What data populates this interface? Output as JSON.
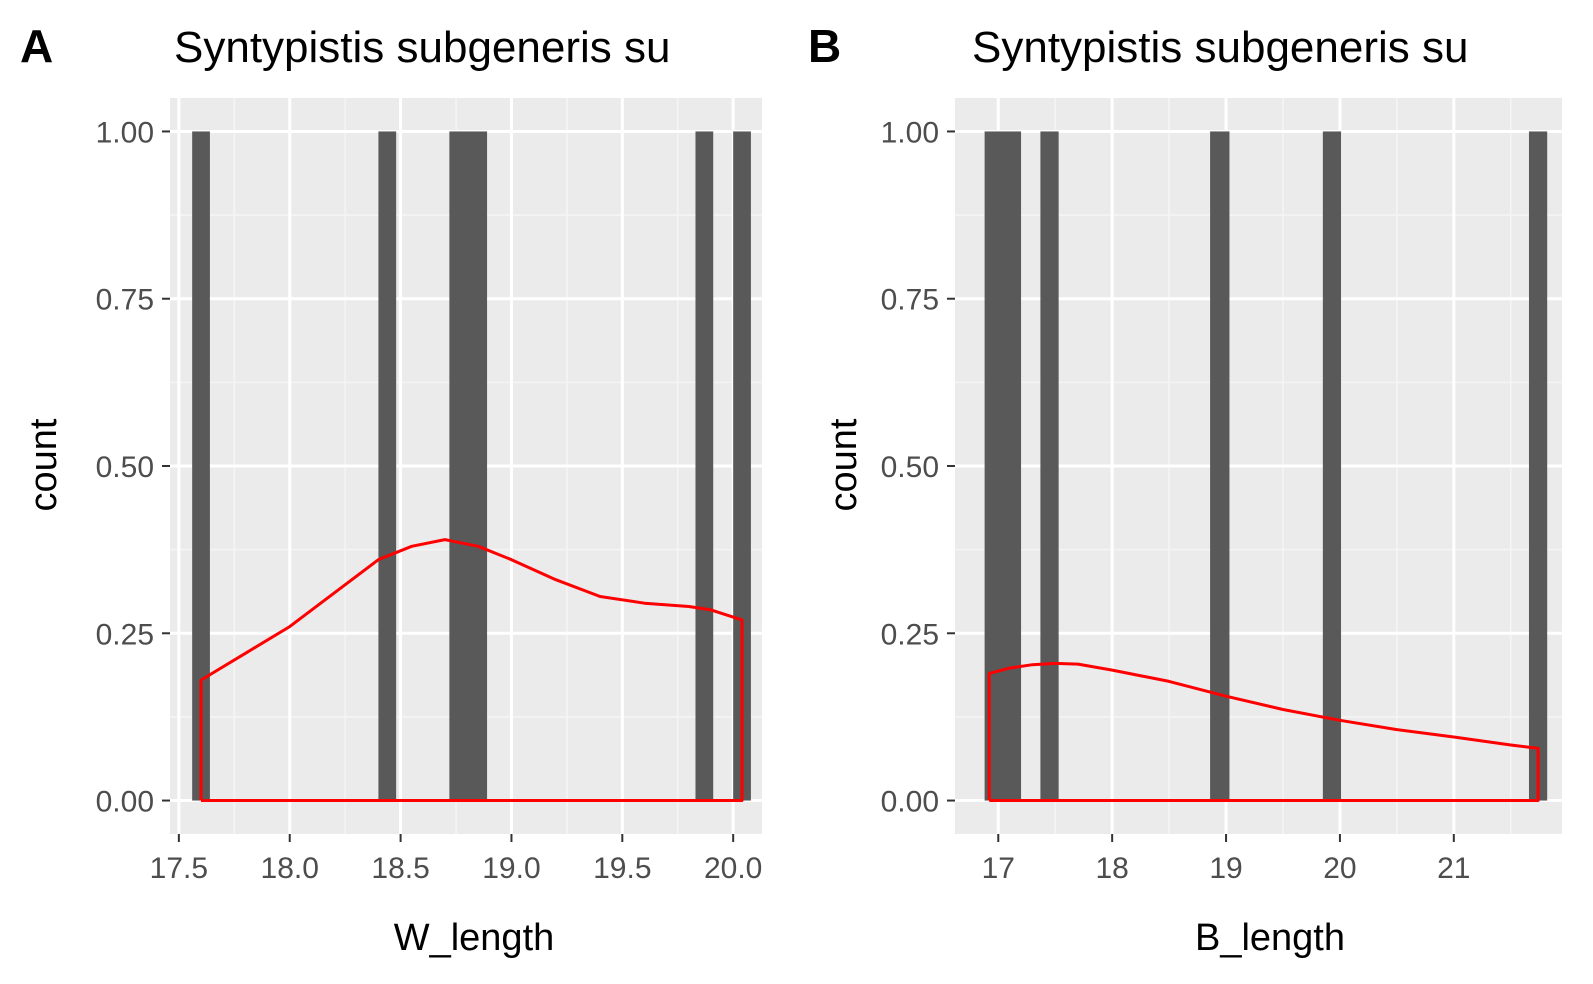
{
  "colors": {
    "panel_background": "#ebebeb",
    "grid_major": "#ffffff",
    "grid_minor": "#f5f5f5",
    "bar_fill": "#595959",
    "density_line": "#ff0000",
    "tick_mark": "#333333"
  },
  "chart_data": [
    {
      "type": "bar",
      "tag": "A",
      "title": "Syntypistis subgeneris su",
      "xlabel": "W_length",
      "ylabel": "count",
      "grid": true,
      "legend": "none",
      "xlim": [
        17.46,
        20.13
      ],
      "ylim": [
        -0.05,
        1.05
      ],
      "x_ticks": [
        {
          "value": 17.5,
          "label": "17.5"
        },
        {
          "value": 18.0,
          "label": "18.0"
        },
        {
          "value": 18.5,
          "label": "18.5"
        },
        {
          "value": 19.0,
          "label": "19.0"
        },
        {
          "value": 19.5,
          "label": "19.5"
        },
        {
          "value": 20.0,
          "label": "20.0"
        }
      ],
      "y_ticks": [
        {
          "value": 0.0,
          "label": "0.00"
        },
        {
          "value": 0.25,
          "label": "0.25"
        },
        {
          "value": 0.5,
          "label": "0.50"
        },
        {
          "value": 0.75,
          "label": "0.75"
        },
        {
          "value": 1.0,
          "label": "1.00"
        }
      ],
      "bars": [
        {
          "x_start": 17.56,
          "x_end": 17.64,
          "count": 1
        },
        {
          "x_start": 18.4,
          "x_end": 18.48,
          "count": 1
        },
        {
          "x_start": 18.72,
          "x_end": 18.89,
          "count": 1
        },
        {
          "x_start": 19.83,
          "x_end": 19.91,
          "count": 1
        },
        {
          "x_start": 20.0,
          "x_end": 20.08,
          "count": 1
        }
      ],
      "density": [
        [
          17.6,
          0.0
        ],
        [
          17.6,
          0.18
        ],
        [
          17.65,
          0.19
        ],
        [
          17.8,
          0.22
        ],
        [
          18.0,
          0.26
        ],
        [
          18.2,
          0.31
        ],
        [
          18.4,
          0.36
        ],
        [
          18.55,
          0.38
        ],
        [
          18.7,
          0.39
        ],
        [
          18.85,
          0.38
        ],
        [
          19.0,
          0.36
        ],
        [
          19.2,
          0.33
        ],
        [
          19.4,
          0.305
        ],
        [
          19.6,
          0.295
        ],
        [
          19.8,
          0.29
        ],
        [
          19.9,
          0.285
        ],
        [
          20.04,
          0.27
        ],
        [
          20.04,
          0.0
        ],
        [
          17.6,
          0.0
        ]
      ]
    },
    {
      "type": "bar",
      "tag": "B",
      "title": "Syntypistis subgeneris su",
      "xlabel": "B_length",
      "ylabel": "count",
      "grid": true,
      "legend": "none",
      "xlim": [
        16.62,
        21.95
      ],
      "ylim": [
        -0.05,
        1.05
      ],
      "x_ticks": [
        {
          "value": 17,
          "label": "17"
        },
        {
          "value": 18,
          "label": "18"
        },
        {
          "value": 19,
          "label": "19"
        },
        {
          "value": 20,
          "label": "20"
        },
        {
          "value": 21,
          "label": "21"
        }
      ],
      "y_ticks": [
        {
          "value": 0.0,
          "label": "0.00"
        },
        {
          "value": 0.25,
          "label": "0.25"
        },
        {
          "value": 0.5,
          "label": "0.50"
        },
        {
          "value": 0.75,
          "label": "0.75"
        },
        {
          "value": 1.0,
          "label": "1.00"
        }
      ],
      "bars": [
        {
          "x_start": 16.88,
          "x_end": 17.2,
          "count": 1
        },
        {
          "x_start": 17.37,
          "x_end": 17.53,
          "count": 1
        },
        {
          "x_start": 18.86,
          "x_end": 19.03,
          "count": 1
        },
        {
          "x_start": 19.85,
          "x_end": 20.01,
          "count": 1
        },
        {
          "x_start": 21.66,
          "x_end": 21.82,
          "count": 1
        }
      ],
      "density": [
        [
          16.92,
          0.0
        ],
        [
          16.92,
          0.19
        ],
        [
          17.1,
          0.198
        ],
        [
          17.3,
          0.203
        ],
        [
          17.5,
          0.205
        ],
        [
          17.7,
          0.204
        ],
        [
          18.0,
          0.195
        ],
        [
          18.5,
          0.178
        ],
        [
          19.0,
          0.156
        ],
        [
          19.5,
          0.136
        ],
        [
          20.0,
          0.12
        ],
        [
          20.5,
          0.106
        ],
        [
          21.0,
          0.095
        ],
        [
          21.5,
          0.083
        ],
        [
          21.74,
          0.078
        ],
        [
          21.74,
          0.0
        ],
        [
          16.92,
          0.0
        ]
      ]
    }
  ]
}
